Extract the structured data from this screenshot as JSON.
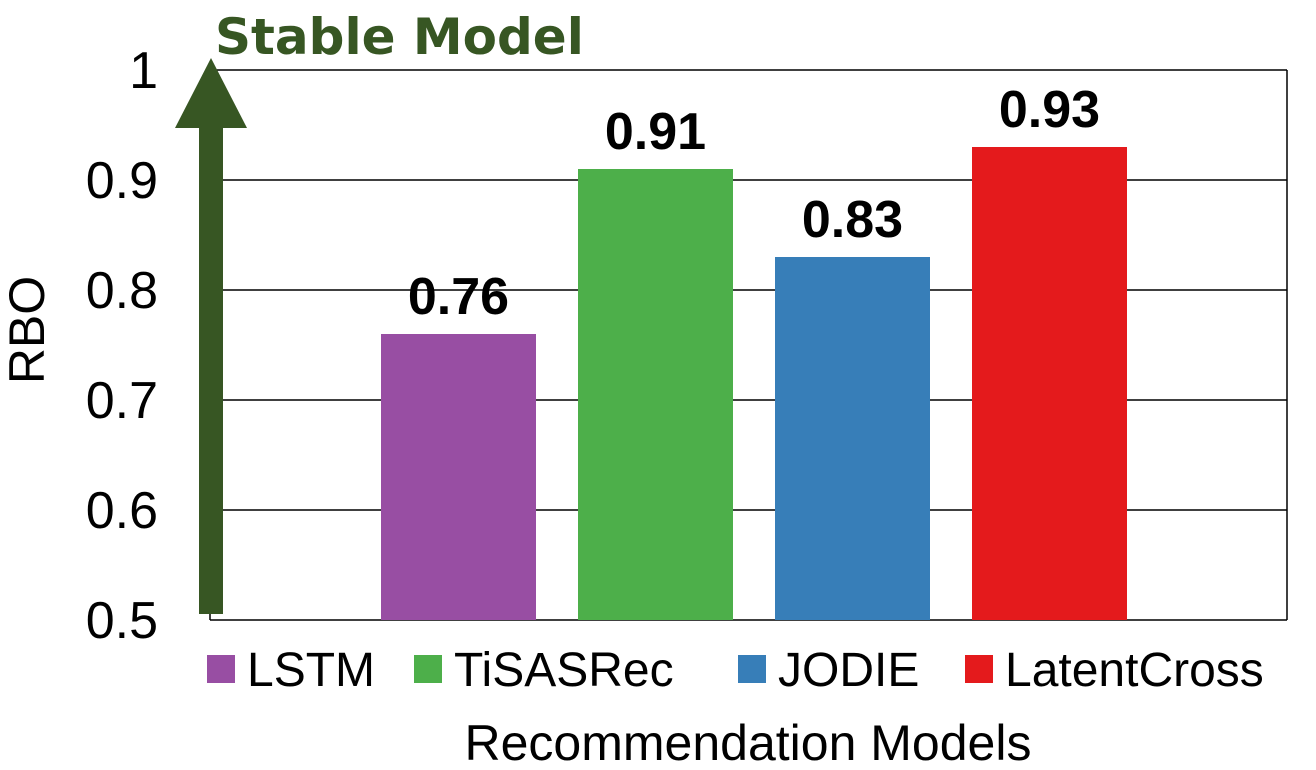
{
  "chart_data": {
    "type": "bar",
    "categories": [
      "LSTM",
      "TiSASRec",
      "JODIE",
      "LatentCross"
    ],
    "values": [
      0.76,
      0.91,
      0.83,
      0.93
    ],
    "data_labels": [
      "0.76",
      "0.91",
      "0.83",
      "0.93"
    ],
    "colors": [
      "#984ea3",
      "#4daf4a",
      "#377eb8",
      "#e41a1c"
    ],
    "xlabel": "Recommendation Models",
    "ylabel": "RBO",
    "ylim": [
      0.5,
      1
    ],
    "yticks": [
      "0.5",
      "0.6",
      "0.7",
      "0.8",
      "0.9",
      "1"
    ],
    "grid": "horizontal",
    "legend": {
      "position": "bottom",
      "entries": [
        "LSTM",
        "TiSASRec",
        "JODIE",
        "LatentCross"
      ]
    },
    "annotation": {
      "text": "Stable Model",
      "arrow": "up",
      "color": "#375623"
    }
  }
}
